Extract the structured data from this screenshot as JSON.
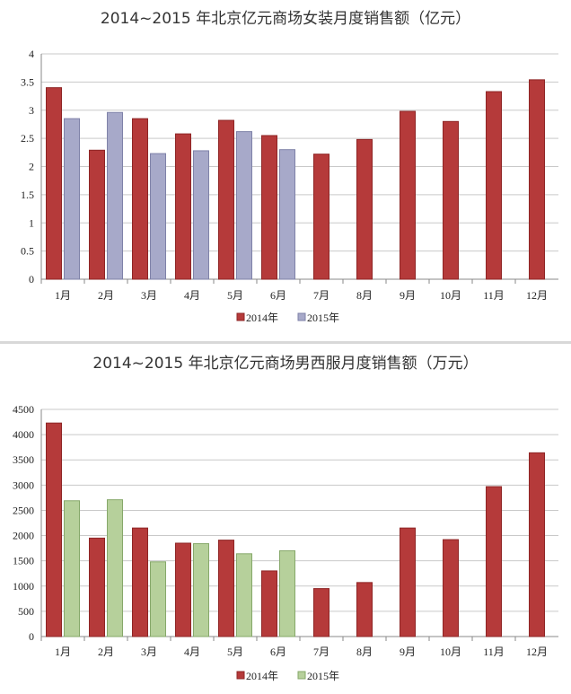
{
  "chart_data": [
    {
      "type": "bar",
      "title": "2014~2015 年北京亿元商场女装月度销售额（亿元）",
      "categories": [
        "1月",
        "2月",
        "3月",
        "4月",
        "5月",
        "6月",
        "7月",
        "8月",
        "9月",
        "10月",
        "11月",
        "12月"
      ],
      "series": [
        {
          "name": "2014年",
          "values": [
            3.4,
            2.29,
            2.85,
            2.58,
            2.82,
            2.55,
            2.22,
            2.48,
            2.98,
            2.8,
            3.33,
            3.54
          ]
        },
        {
          "name": "2015年",
          "values": [
            2.85,
            2.96,
            2.23,
            2.28,
            2.62,
            2.3,
            null,
            null,
            null,
            null,
            null,
            null
          ]
        }
      ],
      "yticks": [
        "0",
        "0.5",
        "1",
        "1.5",
        "2",
        "2.5",
        "3",
        "3.5",
        "4"
      ],
      "ylim": [
        0,
        4
      ],
      "grid": true,
      "legend": "bottom",
      "colors": {
        "2014年": "#b53a3a",
        "2015年": "#a7a9c9"
      }
    },
    {
      "type": "bar",
      "title": "2014~2015 年北京亿元商场男西服月度销售额（万元）",
      "categories": [
        "1月",
        "2月",
        "3月",
        "4月",
        "5月",
        "6月",
        "7月",
        "8月",
        "9月",
        "10月",
        "11月",
        "12月"
      ],
      "series": [
        {
          "name": "2014年",
          "values": [
            4230,
            1950,
            2150,
            1850,
            1910,
            1300,
            950,
            1070,
            2150,
            1920,
            2970,
            3640
          ]
        },
        {
          "name": "2015年",
          "values": [
            2690,
            2710,
            1480,
            1840,
            1640,
            1700,
            null,
            null,
            null,
            null,
            null,
            null
          ]
        }
      ],
      "yticks": [
        "0",
        "500",
        "1000",
        "1500",
        "2000",
        "2500",
        "3000",
        "3500",
        "4000",
        "4500"
      ],
      "ylim": [
        0,
        4500
      ],
      "grid": true,
      "legend": "bottom",
      "colors": {
        "2014年": "#b53a3a",
        "2015年": "#b6d09b"
      }
    }
  ]
}
